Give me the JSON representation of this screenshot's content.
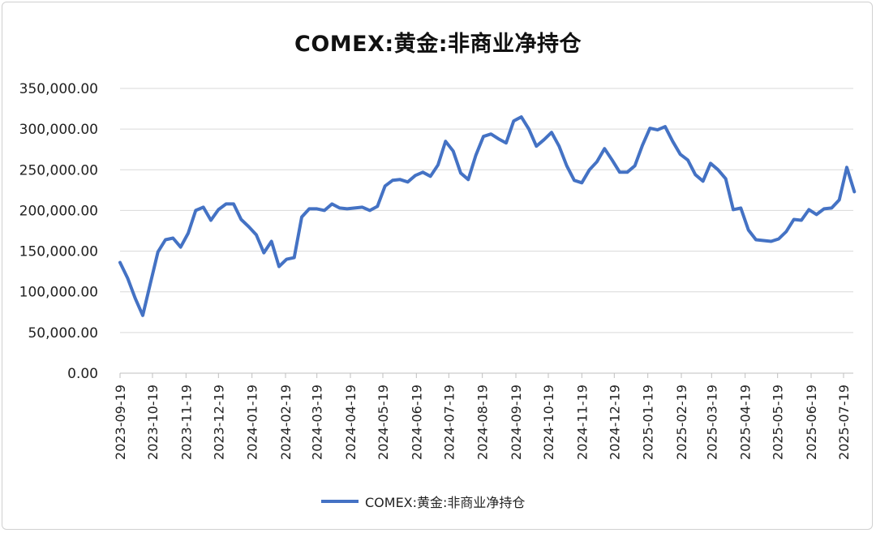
{
  "chart_data": {
    "type": "line",
    "title": "COMEX:黄金:非商业净持仓",
    "xlabel": "",
    "ylabel": "",
    "ylim": [
      0,
      350000
    ],
    "y_ticks": [
      "350,000.00",
      "300,000.00",
      "250,000.00",
      "200,000.00",
      "150,000.00",
      "100,000.00",
      "50,000.00",
      "0.00"
    ],
    "y_tick_values": [
      350000,
      300000,
      250000,
      200000,
      150000,
      100000,
      50000,
      0
    ],
    "x_ticks": [
      "2023-09-19",
      "2023-10-19",
      "2023-11-19",
      "2023-12-19",
      "2024-01-19",
      "2024-02-19",
      "2024-03-19",
      "2024-04-19",
      "2024-05-19",
      "2024-06-19",
      "2024-07-19",
      "2024-08-19",
      "2024-09-19",
      "2024-10-19",
      "2024-11-19",
      "2024-12-19",
      "2025-01-19",
      "2025-02-19",
      "2025-03-19",
      "2025-04-19",
      "2025-05-19",
      "2025-06-19",
      "2025-07-19"
    ],
    "grid": true,
    "legend": "bottom",
    "series": [
      {
        "name": "COMEX:黄金:非商业净持仓",
        "color": "#4472c4",
        "x": [
          "2023-09-19",
          "2023-09-26",
          "2023-10-03",
          "2023-10-10",
          "2023-10-17",
          "2023-10-24",
          "2023-10-31",
          "2023-11-07",
          "2023-11-14",
          "2023-11-21",
          "2023-11-28",
          "2023-12-05",
          "2023-12-12",
          "2023-12-19",
          "2023-12-26",
          "2024-01-02",
          "2024-01-09",
          "2024-01-16",
          "2024-01-23",
          "2024-01-30",
          "2024-02-06",
          "2024-02-13",
          "2024-02-20",
          "2024-02-27",
          "2024-03-05",
          "2024-03-12",
          "2024-03-19",
          "2024-03-26",
          "2024-04-02",
          "2024-04-09",
          "2024-04-16",
          "2024-04-23",
          "2024-04-30",
          "2024-05-07",
          "2024-05-14",
          "2024-05-21",
          "2024-05-28",
          "2024-06-04",
          "2024-06-11",
          "2024-06-18",
          "2024-06-25",
          "2024-07-02",
          "2024-07-09",
          "2024-07-16",
          "2024-07-23",
          "2024-07-30",
          "2024-08-06",
          "2024-08-13",
          "2024-08-20",
          "2024-08-27",
          "2024-09-03",
          "2024-09-10",
          "2024-09-17",
          "2024-09-24",
          "2024-10-01",
          "2024-10-08",
          "2024-10-15",
          "2024-10-22",
          "2024-10-29",
          "2024-11-05",
          "2024-11-12",
          "2024-11-19",
          "2024-11-26",
          "2024-12-03",
          "2024-12-10",
          "2024-12-17",
          "2024-12-24",
          "2024-12-31",
          "2025-01-07",
          "2025-01-14",
          "2025-01-21",
          "2025-01-28",
          "2025-02-04",
          "2025-02-11",
          "2025-02-18",
          "2025-02-25",
          "2025-03-04",
          "2025-03-11",
          "2025-03-18",
          "2025-03-25",
          "2025-04-01",
          "2025-04-08",
          "2025-04-15",
          "2025-04-22",
          "2025-04-29",
          "2025-05-06",
          "2025-05-13",
          "2025-05-20",
          "2025-05-27",
          "2025-06-03",
          "2025-06-10",
          "2025-06-17",
          "2025-06-24",
          "2025-07-01",
          "2025-07-08",
          "2025-07-15",
          "2025-07-22",
          "2025-07-29"
        ],
        "values": [
          136000,
          117000,
          92000,
          71000,
          110000,
          149000,
          164000,
          166000,
          155000,
          172000,
          200000,
          204000,
          188000,
          201000,
          208000,
          208000,
          189000,
          180000,
          170000,
          148000,
          162000,
          131000,
          140000,
          142000,
          192000,
          202000,
          202000,
          200000,
          208000,
          203000,
          202000,
          203000,
          204000,
          200000,
          205000,
          230000,
          237000,
          238000,
          235000,
          243000,
          247000,
          242000,
          256000,
          285000,
          273000,
          246000,
          238000,
          268000,
          291000,
          294000,
          288000,
          283000,
          310000,
          315000,
          300000,
          279000,
          287000,
          296000,
          279000,
          255000,
          237000,
          234000,
          250000,
          260000,
          276000,
          262000,
          247000,
          247000,
          255000,
          280000,
          301000,
          299000,
          303000,
          285000,
          269000,
          262000,
          244000,
          236000,
          258000,
          250000,
          239000,
          201000,
          203000,
          176000,
          164000,
          163000,
          162000,
          165000,
          174000,
          189000,
          188000,
          201000,
          195000,
          202000,
          203000,
          213000,
          253000,
          223000
        ]
      }
    ]
  }
}
